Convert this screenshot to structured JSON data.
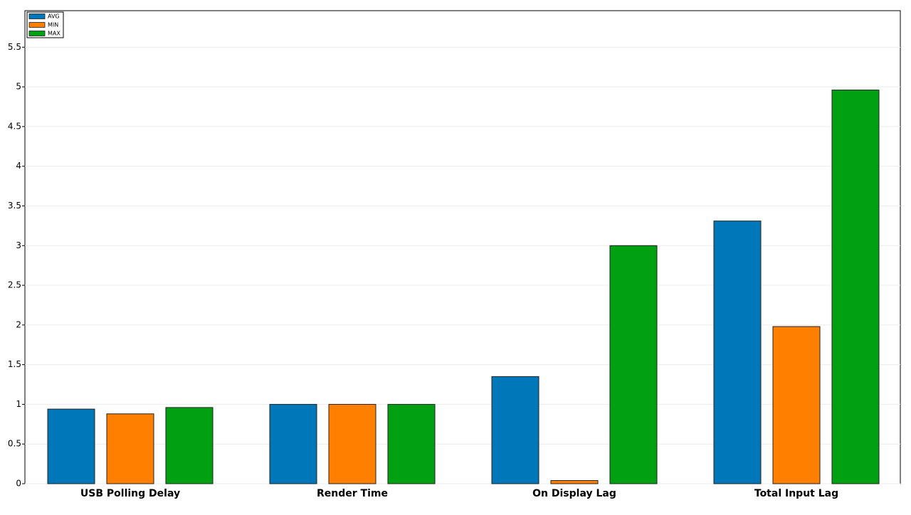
{
  "chart_data": {
    "type": "bar",
    "categories": [
      "USB Polling Delay",
      "Render Time",
      "On Display Lag",
      "Total Input Lag"
    ],
    "series": [
      {
        "name": "AVG",
        "color": "#0077b9",
        "values": [
          0.94,
          1,
          1.35,
          3.31
        ]
      },
      {
        "name": "MIN",
        "color": "#ff7f00",
        "values": [
          0.88,
          1,
          0.04,
          1.98
        ]
      },
      {
        "name": "MAX",
        "color": "#00a012",
        "values": [
          0.96,
          1,
          3,
          4.96
        ]
      }
    ],
    "ylim": [
      0,
      5.96
    ],
    "yticks": [
      0,
      0.5,
      1,
      1.5,
      2,
      2.5,
      3,
      3.5,
      4,
      4.5,
      5,
      5.5
    ],
    "grid": true,
    "legend": "top-left"
  }
}
